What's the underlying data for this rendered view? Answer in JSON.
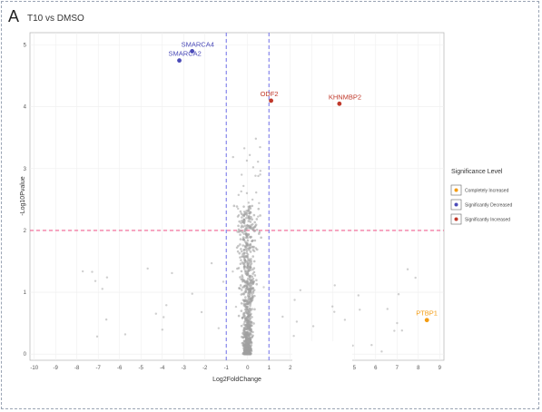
{
  "panel_label": "A",
  "chart_data": {
    "type": "scatter",
    "title": "T10 vs DMSO",
    "xlabel": "Log2FoldChange",
    "ylabel": "-Log10Pvalue",
    "xlim": [
      -10.2,
      9.2
    ],
    "ylim": [
      -0.1,
      5.2
    ],
    "xticks": [
      -10,
      -9,
      -8,
      -7,
      -6,
      -5,
      -4,
      -3,
      -2,
      -1,
      0,
      1,
      2,
      3,
      4,
      5,
      6,
      7,
      8,
      9
    ],
    "yticks": [
      0,
      1,
      2,
      3,
      4,
      5
    ],
    "grid": true,
    "thresholds": {
      "x": [
        -1,
        1
      ],
      "y": 2
    },
    "colors": {
      "background_points": "#a0a0a0",
      "decreased": "#4b4bb8",
      "increased": "#c0392b",
      "completely_increased": "#f39c12",
      "vline": "#7b7bea",
      "hline": "#f06090"
    },
    "legend": {
      "title": "Significance Level",
      "position": "right",
      "entries": [
        {
          "label": "Completely Increased",
          "color": "#f39c12"
        },
        {
          "label": "Significantly Decreased",
          "color": "#4b4bb8"
        },
        {
          "label": "Significantly Increased",
          "color": "#c0392b"
        }
      ]
    },
    "labeled_points": [
      {
        "label": "SMARCA4",
        "x": -2.6,
        "y": 4.9,
        "group": "decreased"
      },
      {
        "label": "SMARCA2",
        "x": -3.2,
        "y": 4.75,
        "group": "decreased"
      },
      {
        "label": "ODF2",
        "x": 1.1,
        "y": 4.1,
        "group": "increased"
      },
      {
        "label": "KHNMBP2",
        "x": 4.3,
        "y": 4.05,
        "group": "increased"
      },
      {
        "label": "PTBP1",
        "x": 8.4,
        "y": 0.55,
        "group": "completely_increased"
      }
    ]
  }
}
